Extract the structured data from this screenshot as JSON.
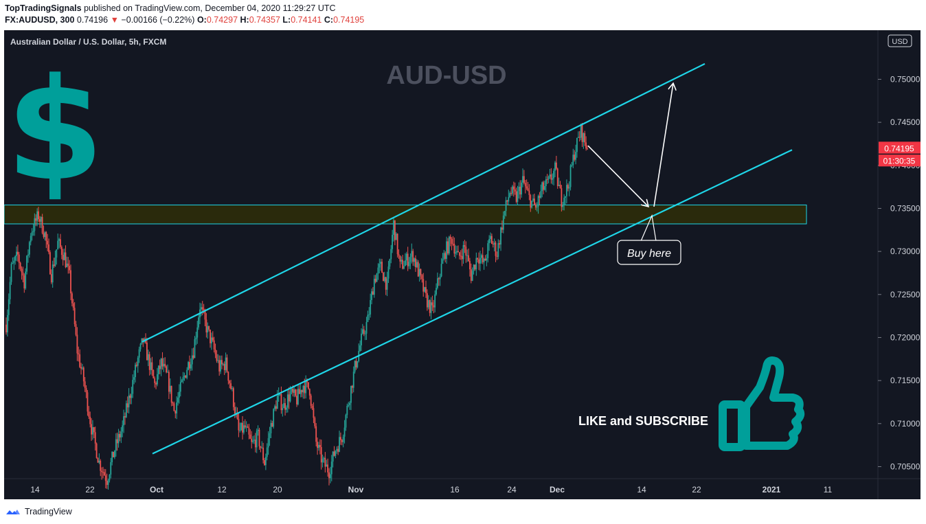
{
  "header": {
    "author": "TopTradingSignals",
    "published": "published on TradingView.com, December 04, 2020 11:29:27 UTC",
    "symbol": "FX:AUDUSD, 300",
    "last": "0.74196",
    "down_arrow": "▼",
    "change": "−0.00166 (−0.22%)",
    "o_label": "O:",
    "o_value": "0.74297",
    "h_label": "H:",
    "h_value": "0.74357",
    "l_label": "L:",
    "l_value": "0.74141",
    "c_label": "C:",
    "c_value": "0.74195"
  },
  "chart_data": {
    "type": "candlestick",
    "title": "AUD-USD",
    "instrument_label": "Australian Dollar / U.S. Dollar, 5h, FXCM",
    "currency_badge": "USD",
    "price_ticks": [
      "0.75000",
      "0.74500",
      "0.74000",
      "0.73500",
      "0.73000",
      "0.72500",
      "0.72000",
      "0.71500",
      "0.71000",
      "0.70500"
    ],
    "price_tick_values": [
      0.75,
      0.745,
      0.74,
      0.735,
      0.73,
      0.725,
      0.72,
      0.715,
      0.71,
      0.705
    ],
    "ylim": [
      0.7036,
      0.7557
    ],
    "time_ticks": [
      {
        "label": "14",
        "bold": false
      },
      {
        "label": "22",
        "bold": false
      },
      {
        "label": "Oct",
        "bold": true
      },
      {
        "label": "12",
        "bold": false
      },
      {
        "label": "20",
        "bold": false
      },
      {
        "label": "Nov",
        "bold": true
      },
      {
        "label": "16",
        "bold": false
      },
      {
        "label": "24",
        "bold": false
      },
      {
        "label": "Dec",
        "bold": true
      },
      {
        "label": "14",
        "bold": false
      },
      {
        "label": "22",
        "bold": false
      },
      {
        "label": "2021",
        "bold": true
      },
      {
        "label": "11",
        "bold": false
      }
    ],
    "last_price_label": "0.74195",
    "countdown_label": "01:30:35",
    "last_price": 0.74195,
    "price_path": [
      [
        0,
        0.7215
      ],
      [
        4,
        0.728
      ],
      [
        9,
        0.7295
      ],
      [
        14,
        0.7265
      ],
      [
        19,
        0.7322
      ],
      [
        25,
        0.7342
      ],
      [
        30,
        0.732
      ],
      [
        35,
        0.7273
      ],
      [
        40,
        0.731
      ],
      [
        45,
        0.7295
      ],
      [
        49,
        0.727
      ],
      [
        55,
        0.7185
      ],
      [
        60,
        0.715
      ],
      [
        66,
        0.7095
      ],
      [
        72,
        0.7055
      ],
      [
        78,
        0.7035
      ],
      [
        84,
        0.707
      ],
      [
        90,
        0.7095
      ],
      [
        96,
        0.7135
      ],
      [
        102,
        0.7175
      ],
      [
        106,
        0.7197
      ],
      [
        110,
        0.7175
      ],
      [
        115,
        0.7145
      ],
      [
        120,
        0.717
      ],
      [
        125,
        0.7152
      ],
      [
        130,
        0.7115
      ],
      [
        135,
        0.714
      ],
      [
        140,
        0.7165
      ],
      [
        145,
        0.7185
      ],
      [
        150,
        0.7237
      ],
      [
        155,
        0.7212
      ],
      [
        160,
        0.719
      ],
      [
        165,
        0.7165
      ],
      [
        170,
        0.717
      ],
      [
        175,
        0.7135
      ],
      [
        180,
        0.709
      ],
      [
        185,
        0.7095
      ],
      [
        190,
        0.7075
      ],
      [
        195,
        0.7085
      ],
      [
        200,
        0.7055
      ],
      [
        205,
        0.7098
      ],
      [
        210,
        0.713
      ],
      [
        215,
        0.712
      ],
      [
        220,
        0.7135
      ],
      [
        225,
        0.7128
      ],
      [
        230,
        0.7145
      ],
      [
        235,
        0.714
      ],
      [
        240,
        0.7078
      ],
      [
        245,
        0.7055
      ],
      [
        250,
        0.7045
      ],
      [
        255,
        0.707
      ],
      [
        260,
        0.7085
      ],
      [
        265,
        0.7125
      ],
      [
        270,
        0.7165
      ],
      [
        275,
        0.7197
      ],
      [
        280,
        0.722
      ],
      [
        285,
        0.7268
      ],
      [
        290,
        0.7282
      ],
      [
        295,
        0.726
      ],
      [
        300,
        0.7332
      ],
      [
        305,
        0.7282
      ],
      [
        310,
        0.729
      ],
      [
        315,
        0.7296
      ],
      [
        320,
        0.7272
      ],
      [
        325,
        0.7245
      ],
      [
        330,
        0.723
      ],
      [
        335,
        0.727
      ],
      [
        340,
        0.73
      ],
      [
        345,
        0.7315
      ],
      [
        350,
        0.7292
      ],
      [
        355,
        0.7305
      ],
      [
        360,
        0.7272
      ],
      [
        365,
        0.7296
      ],
      [
        370,
        0.7285
      ],
      [
        375,
        0.7315
      ],
      [
        380,
        0.7298
      ],
      [
        385,
        0.734
      ],
      [
        390,
        0.737
      ],
      [
        395,
        0.7362
      ],
      [
        400,
        0.7382
      ],
      [
        405,
        0.7362
      ],
      [
        410,
        0.735
      ],
      [
        415,
        0.7372
      ],
      [
        420,
        0.738
      ],
      [
        425,
        0.7395
      ],
      [
        430,
        0.736
      ],
      [
        435,
        0.7375
      ],
      [
        440,
        0.7415
      ],
      [
        445,
        0.744
      ],
      [
        450,
        0.7419
      ]
    ],
    "channel": {
      "upper": [
        [
          0.7195,
          "2020-09-26"
        ],
        [
          0.7518,
          "2020-12-25"
        ]
      ],
      "lower": [
        [
          0.7065,
          "2020-09-26"
        ],
        [
          0.7418,
          "2021-01-05"
        ]
      ]
    },
    "resistance_zone": [
      0.7332,
      0.7354
    ],
    "projection": {
      "from": 0.7418,
      "low": 0.7352,
      "target": 0.7497
    },
    "annotations": {
      "buy_label": "Buy here",
      "cta_label": "LIKE and SUBSCRIBE",
      "dollar_glyph": "$"
    }
  },
  "colors": {
    "background": "#131722",
    "channel": "#1fd6e8",
    "zone_fill": "#2a2a0c",
    "bull": "#26a69a",
    "bear": "#ef5350",
    "accent_teal": "#009f9a",
    "title_gray": "#4c505e",
    "axis_text": "#d1d4dc",
    "last_price_bg": "#f23645"
  },
  "footer": {
    "brand": "TradingView"
  }
}
